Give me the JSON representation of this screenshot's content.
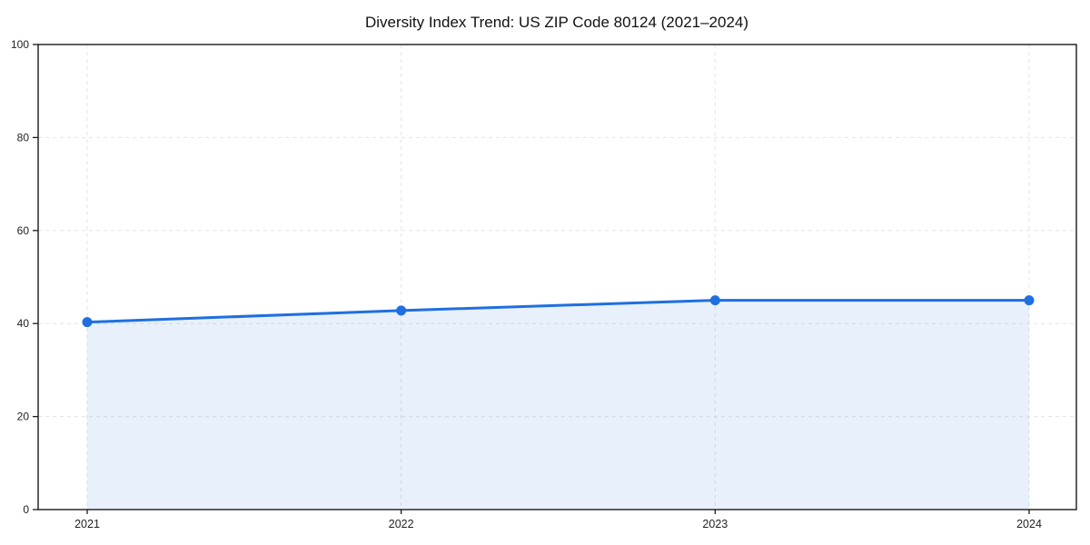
{
  "chart_data": {
    "type": "line",
    "title": "Diversity Index Trend: US ZIP Code 80124 (2021–2024)",
    "x": [
      "2021",
      "2022",
      "2023",
      "2024"
    ],
    "values": [
      40.3,
      42.8,
      45.0,
      45.0
    ],
    "xlabel": "",
    "ylabel": "",
    "ylim": [
      0,
      100
    ],
    "yticks": [
      0,
      20,
      40,
      60,
      80,
      100
    ],
    "grid": "dashed",
    "legend": "none",
    "fill_under_line": true,
    "marker": "circle",
    "colors": {
      "line": "#1f6fe0",
      "marker": "#1f6fe0",
      "fill": "#1f6fe0",
      "fill_opacity": 0.1,
      "grid": "#e3e3e3",
      "axis": "#1a1a1a",
      "tick_label": "#222222",
      "title": "#111111",
      "background": "#ffffff"
    }
  }
}
